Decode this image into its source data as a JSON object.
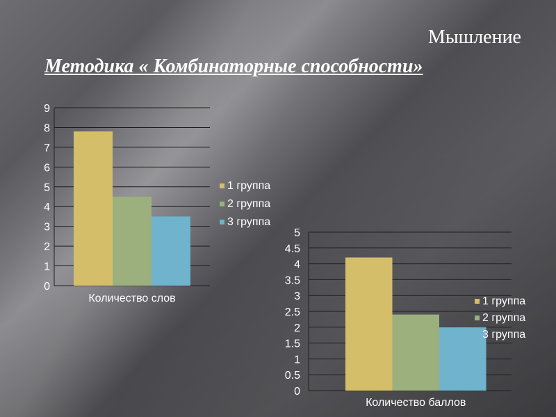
{
  "header": {
    "heading": "Мышление",
    "subtitle": "Методика « Комбинаторные способности»"
  },
  "colors": {
    "text": "#ffffff",
    "grid": "#1e1e20",
    "series": [
      "#d4be6a",
      "#9bb07d",
      "#6fb3cc"
    ]
  },
  "chart_data": [
    {
      "type": "bar",
      "categories": [
        "Количество слов"
      ],
      "series": [
        {
          "name": "1 группа",
          "values": [
            7.8
          ]
        },
        {
          "name": "2 группа",
          "values": [
            4.5
          ]
        },
        {
          "name": "3 группа",
          "values": [
            3.5
          ]
        }
      ],
      "ylim": [
        0,
        9
      ],
      "yticks": [
        "0",
        "1",
        "2",
        "3",
        "4",
        "5",
        "6",
        "7",
        "8",
        "9"
      ],
      "grid": true,
      "legend": "right"
    },
    {
      "type": "bar",
      "categories": [
        "Количество баллов"
      ],
      "series": [
        {
          "name": "1 группа",
          "values": [
            4.2
          ]
        },
        {
          "name": "2 группа",
          "values": [
            2.4
          ]
        },
        {
          "name": "3 группа",
          "values": [
            2.0
          ]
        }
      ],
      "ylim": [
        0,
        5
      ],
      "yticks": [
        "0",
        "0.5",
        "1",
        "1.5",
        "2",
        "2.5",
        "3",
        "3.5",
        "4",
        "4.5",
        "5"
      ],
      "grid": true,
      "legend": "right"
    }
  ]
}
